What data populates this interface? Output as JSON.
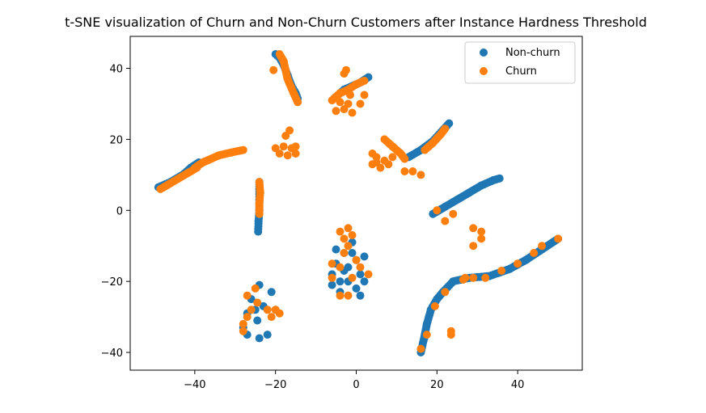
{
  "chart_data": {
    "type": "scatter",
    "title": "t-SNE visualization of Churn and Non-Churn Customers after Instance Hardness Threshold",
    "xlabel": "",
    "ylabel": "",
    "xlim": [
      -56,
      56
    ],
    "ylim": [
      -45,
      49
    ],
    "x_ticks": [
      -40,
      -20,
      0,
      20,
      40
    ],
    "x_tick_labels": [
      "−40",
      "−20",
      "0",
      "20",
      "40"
    ],
    "y_ticks": [
      -40,
      -20,
      0,
      20,
      40
    ],
    "y_tick_labels": [
      "−40",
      "−20",
      "0",
      "20",
      "40"
    ],
    "grid": false,
    "legend_position": "top-right",
    "series": [
      {
        "name": "Non-churn",
        "color": "#1f77b4",
        "segments": [
          [
            [
              -49,
              6.5
            ],
            [
              -46,
              8
            ],
            [
              -43,
              10
            ],
            [
              -41,
              12
            ],
            [
              -39,
              13.5
            ]
          ],
          [
            [
              -20,
              44
            ],
            [
              -19,
              43
            ],
            [
              -18,
              41
            ],
            [
              -17,
              38
            ],
            [
              -16,
              35
            ],
            [
              -15,
              33
            ],
            [
              -14.5,
              31.5
            ]
          ],
          [
            [
              -5,
              32
            ],
            [
              -3,
              34
            ],
            [
              -1,
              35
            ],
            [
              1,
              36
            ],
            [
              3,
              37.5
            ]
          ],
          [
            [
              13,
              15
            ],
            [
              16,
              17
            ],
            [
              19,
              19.5
            ],
            [
              21,
              22
            ],
            [
              23,
              24.5
            ]
          ],
          [
            [
              -24.3,
              -6
            ],
            [
              -24.2,
              -3
            ],
            [
              -24,
              0
            ],
            [
              -24,
              3
            ],
            [
              -24,
              6
            ],
            [
              -24,
              8
            ]
          ],
          [
            [
              19,
              -1
            ],
            [
              22,
              1
            ],
            [
              25,
              3
            ],
            [
              28,
              5
            ],
            [
              31,
              7
            ],
            [
              34,
              8.5
            ],
            [
              35.5,
              9
            ]
          ],
          [
            [
              16,
              -40
            ],
            [
              16.8,
              -36
            ],
            [
              17.5,
              -32
            ],
            [
              18.5,
              -28
            ],
            [
              20,
              -25
            ],
            [
              21.5,
              -23
            ],
            [
              24,
              -20
            ],
            [
              28,
              -19
            ],
            [
              33,
              -18.5
            ],
            [
              38,
              -16.5
            ],
            [
              42,
              -14
            ],
            [
              46,
              -11
            ],
            [
              50,
              -8
            ]
          ]
        ],
        "clusters": [
          [
            -27,
            -35
          ],
          [
            -24,
            -36
          ],
          [
            -22,
            -35
          ],
          [
            -27,
            -29
          ],
          [
            -25,
            -28
          ],
          [
            -23,
            -27
          ],
          [
            -24,
            -21
          ],
          [
            -26,
            -25
          ],
          [
            -20,
            -28
          ],
          [
            -24.5,
            -31
          ],
          [
            -28,
            -33
          ],
          [
            -21,
            -23
          ],
          [
            -6,
            -18
          ],
          [
            -4,
            -20
          ],
          [
            -2,
            -16
          ],
          [
            0,
            -22
          ],
          [
            1,
            -18
          ],
          [
            -3,
            -12
          ],
          [
            -5,
            -15
          ],
          [
            -1,
            -9
          ],
          [
            2,
            -13
          ],
          [
            -4,
            -23
          ],
          [
            -2,
            -20
          ],
          [
            0,
            -14
          ],
          [
            -6,
            -21
          ],
          [
            1,
            -24
          ],
          [
            -5,
            -11
          ],
          [
            2,
            -20
          ],
          [
            -3,
            -17
          ],
          [
            -1,
            -12
          ]
        ]
      },
      {
        "name": "Churn",
        "color": "#ff7f0e",
        "segments": [
          [
            [
              -48.5,
              6
            ],
            [
              -39.5,
              12
            ]
          ],
          [
            [
              -40,
              12
            ],
            [
              -38,
              13.5
            ],
            [
              -36,
              14.5
            ],
            [
              -34,
              15.5
            ],
            [
              -31,
              16.3
            ],
            [
              -28,
              17
            ]
          ],
          [
            [
              -19,
              44
            ],
            [
              -18,
              42
            ],
            [
              -17,
              37
            ],
            [
              -15.5,
              33
            ],
            [
              -14.5,
              30.5
            ]
          ],
          [
            [
              -6,
              31
            ],
            [
              -4,
              33
            ],
            [
              -2,
              34
            ],
            [
              0,
              35.5
            ],
            [
              2,
              36.5
            ]
          ],
          [
            [
              -24,
              -1
            ],
            [
              -24,
              2
            ],
            [
              -23.8,
              5
            ],
            [
              -24,
              8
            ]
          ],
          [
            [
              7,
              20
            ],
            [
              9,
              18
            ],
            [
              11,
              16
            ],
            [
              12,
              14.5
            ]
          ],
          [
            [
              17,
              17
            ],
            [
              19,
              19
            ],
            [
              21,
              21.5
            ],
            [
              22,
              23
            ]
          ]
        ],
        "clusters": [
          [
            -20.5,
            39.5
          ],
          [
            -17.5,
            21
          ],
          [
            -18,
            18
          ],
          [
            -16,
            17.5
          ],
          [
            -15,
            18
          ],
          [
            -20,
            17.5
          ],
          [
            -19,
            16
          ],
          [
            -17,
            15.5
          ],
          [
            -16.5,
            22.5
          ],
          [
            -15,
            16
          ],
          [
            -5,
            28
          ],
          [
            -3,
            28.5
          ],
          [
            -2,
            30
          ],
          [
            -1,
            27.5
          ],
          [
            -4,
            30.5
          ],
          [
            -1.5,
            32.5
          ],
          [
            -2.5,
            39.5
          ],
          [
            -3,
            38.5
          ],
          [
            1,
            30
          ],
          [
            2,
            32.5
          ],
          [
            4,
            13
          ],
          [
            5,
            15
          ],
          [
            6,
            12
          ],
          [
            4,
            16
          ],
          [
            8,
            13
          ],
          [
            5,
            13.5
          ],
          [
            9,
            15
          ],
          [
            12,
            11
          ],
          [
            14,
            11
          ],
          [
            16,
            10
          ],
          [
            7,
            14
          ],
          [
            -28,
            -32
          ],
          [
            -27,
            -30
          ],
          [
            -26,
            -28
          ],
          [
            -24.5,
            -26
          ],
          [
            -22,
            -28
          ],
          [
            -21,
            -30
          ],
          [
            -20,
            -28
          ],
          [
            -19,
            -29
          ],
          [
            -27,
            -24
          ],
          [
            -25,
            -22
          ],
          [
            -28,
            -34
          ],
          [
            -6,
            -19
          ],
          [
            -4,
            -16
          ],
          [
            -3,
            -12
          ],
          [
            -2,
            -5
          ],
          [
            -3,
            -8
          ],
          [
            -4,
            -6
          ],
          [
            -1,
            -7
          ],
          [
            -6,
            -15
          ],
          [
            -2,
            -10
          ],
          [
            0,
            -14
          ],
          [
            1,
            -16
          ],
          [
            -4,
            -24
          ],
          [
            -2,
            -24
          ],
          [
            3,
            -18
          ],
          [
            -1,
            -19
          ],
          [
            22,
            -3
          ],
          [
            24,
            -1
          ],
          [
            20,
            0
          ],
          [
            29,
            -5
          ],
          [
            31,
            -6
          ],
          [
            29,
            -10
          ],
          [
            31,
            -8
          ],
          [
            23.5,
            -34
          ],
          [
            23.5,
            -35
          ],
          [
            17.5,
            -35
          ],
          [
            16,
            -39
          ],
          [
            19.5,
            -27
          ],
          [
            22,
            -23
          ],
          [
            29,
            -19
          ],
          [
            32,
            -19
          ],
          [
            36,
            -17
          ],
          [
            44,
            -12
          ],
          [
            50,
            -8
          ],
          [
            46,
            -10
          ],
          [
            27,
            -19
          ],
          [
            40,
            -15
          ],
          [
            26.5,
            -19.5
          ]
        ]
      }
    ]
  }
}
